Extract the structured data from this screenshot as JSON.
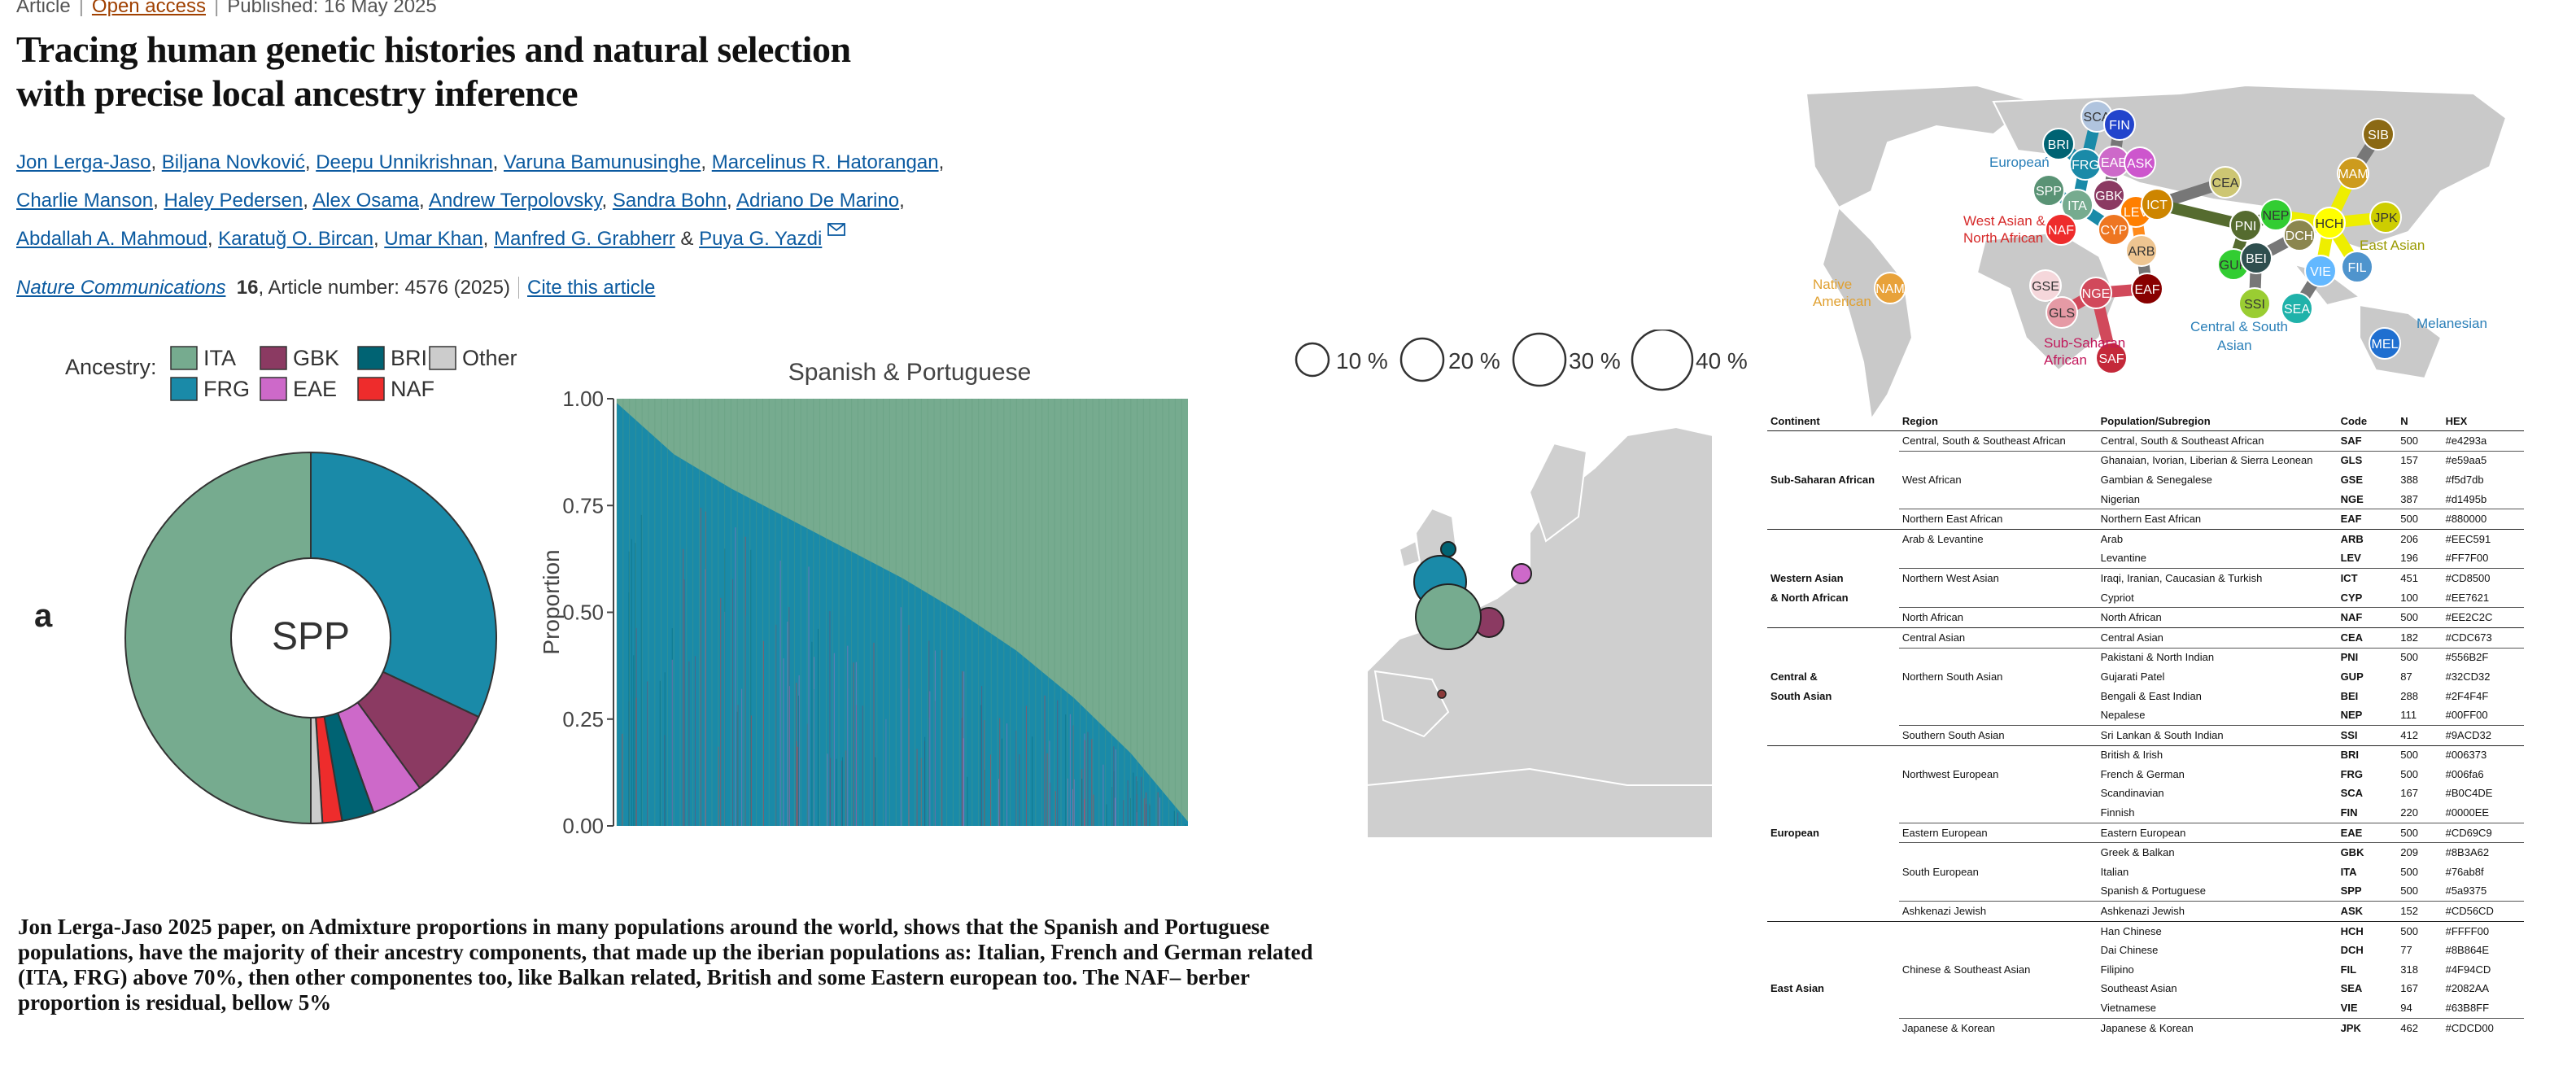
{
  "article": {
    "type": "Article",
    "access": "Open access",
    "published": "Published: 16 May 2025",
    "title_line1": "Tracing human genetic histories and natural selection",
    "title_line2": "with precise local ancestry inference",
    "authors": [
      "Jon Lerga-Jaso",
      "Biljana Novković",
      "Deepu Unnikrishnan",
      "Varuna Bamunusinghe",
      "Marcelinus R. Hatorangan",
      "Charlie Manson",
      "Haley Pedersen",
      "Alex Osama",
      "Andrew Terpolovsky",
      "Sandra Bohn",
      "Adriano De Marino",
      "Abdallah A. Mahmoud",
      "Karatuğ O. Bircan",
      "Umar Khan",
      "Manfred G. Grabherr",
      "Puya G. Yazdi"
    ],
    "journal": "Nature Communications",
    "volume": "16",
    "article_number": ", Article number: 4576 (2025)",
    "cite": "Cite this article"
  },
  "caption": "Jon Lerga-Jaso 2025 paper, on Admixture proportions in many populations around the world, shows that the Spanish and Portuguese populations, have the majority of their ancestry components, that made up the iberian populations as: Italian, French and German related (ITA, FRG) above 70%, then other componentes too, like Balkan related, British and some Eastern european too. The NAF– berber proportion is residual, bellow 5%",
  "legend": {
    "title": "Ancestry:",
    "items": [
      {
        "code": "ITA",
        "color": "#76ab8f"
      },
      {
        "code": "GBK",
        "color": "#8b3a62"
      },
      {
        "code": "BRI",
        "color": "#006373"
      },
      {
        "code": "Other",
        "color": "#cccccc"
      },
      {
        "code": "FRG",
        "color": "#1a8aa8"
      },
      {
        "code": "EAE",
        "color": "#cd69c9"
      },
      {
        "code": "NAF",
        "color": "#ee2c2c"
      }
    ]
  },
  "panel_label": "a",
  "donut_center": "SPP",
  "bar_title": "Spanish & Portuguese",
  "bubble_legend": [
    "10 %",
    "20 %",
    "30 %",
    "40 %"
  ],
  "chart_data": [
    {
      "type": "pie",
      "title": "",
      "center_label": "SPP",
      "slices": [
        {
          "label": "ITA",
          "value": 50.0,
          "color": "#76ab8f"
        },
        {
          "label": "FRG",
          "value": 32.0,
          "color": "#1a8aa8"
        },
        {
          "label": "GBK",
          "value": 8.0,
          "color": "#8b3a62"
        },
        {
          "label": "EAE",
          "value": 4.5,
          "color": "#cd69c9"
        },
        {
          "label": "BRI",
          "value": 2.8,
          "color": "#006373"
        },
        {
          "label": "NAF",
          "value": 1.7,
          "color": "#ee2c2c"
        },
        {
          "label": "Other",
          "value": 1.0,
          "color": "#cccccc"
        }
      ]
    },
    {
      "type": "area",
      "title": "Spanish & Portuguese",
      "xlabel": "",
      "ylabel": "Proportion",
      "ylim": [
        0,
        1
      ],
      "yticks": [
        "0.00",
        "0.25",
        "0.50",
        "0.75",
        "1.00"
      ],
      "series": [
        {
          "name": "ITA",
          "color": "#76ab8f"
        },
        {
          "name": "FRG",
          "color": "#1a8aa8"
        }
      ],
      "boundary_x": [
        0,
        0.1,
        0.2,
        0.3,
        0.4,
        0.5,
        0.6,
        0.7,
        0.8,
        0.9,
        1.0
      ],
      "boundary_y": [
        0.99,
        0.87,
        0.79,
        0.72,
        0.65,
        0.58,
        0.5,
        0.41,
        0.3,
        0.17,
        0.01
      ]
    }
  ],
  "map_labels": [
    {
      "text": "Europeań",
      "color": "#2a7fb8"
    },
    {
      "text": "West Asian &",
      "color": "#d62a2a"
    },
    {
      "text": "North African",
      "color": "#d62a2a"
    },
    {
      "text": "Native",
      "color": "#e0a030"
    },
    {
      "text": "American",
      "color": "#e0a030"
    },
    {
      "text": "Sub-Saharan",
      "color": "#c2185b"
    },
    {
      "text": "African",
      "color": "#c2185b"
    },
    {
      "text": "Central & South",
      "color": "#2a7fb8"
    },
    {
      "text": "Asian",
      "color": "#2a7fb8"
    },
    {
      "text": "East Asian",
      "color": "#9a9a00"
    },
    {
      "text": "Melanesian",
      "color": "#2a7fb8"
    }
  ],
  "map_nodes": [
    "SCA",
    "FIN",
    "BRI",
    "FRG",
    "EAE",
    "ASK",
    "SPP",
    "GBK",
    "ITA",
    "CEA",
    "LEV",
    "ICT",
    "NEP",
    "SIB",
    "MAM",
    "NAF",
    "CYP",
    "PNI",
    "HCH",
    "JPK",
    "DCH",
    "ARB",
    "GUP",
    "BEI",
    "VIE",
    "FIL",
    "EAF",
    "NGE",
    "SSI",
    "SEA",
    "GSE",
    "GLS",
    "SAF",
    "NAM",
    "MEL"
  ],
  "table": {
    "headers": [
      "Continent",
      "Region",
      "Population/Subregion",
      "Code",
      "N",
      "HEX"
    ],
    "rows": [
      {
        "continent": "",
        "region": "Central, South & Southeast African",
        "pop": "Central, South & Southeast African",
        "code": "SAF",
        "n": "500",
        "hex": "#e4293a"
      },
      {
        "continent": "",
        "region": "",
        "pop": "Ghanaian, Ivorian, Liberian & Sierra Leonean",
        "code": "GLS",
        "n": "157",
        "hex": "#e59aa5"
      },
      {
        "continent": "Sub-Saharan African",
        "region": "West African",
        "pop": "Gambian & Senegalese",
        "code": "GSE",
        "n": "388",
        "hex": "#f5d7db"
      },
      {
        "continent": "",
        "region": "",
        "pop": "Nigerian",
        "code": "NGE",
        "n": "387",
        "hex": "#d1495b"
      },
      {
        "continent": "",
        "region": "Northern East African",
        "pop": "Northern East African",
        "code": "EAF",
        "n": "500",
        "hex": "#880000"
      },
      {
        "continent": "",
        "region": "Arab & Levantine",
        "pop": "Arab",
        "code": "ARB",
        "n": "206",
        "hex": "#EEC591"
      },
      {
        "continent": "",
        "region": "",
        "pop": "Levantine",
        "code": "LEV",
        "n": "196",
        "hex": "#FF7F00"
      },
      {
        "continent": "Western Asian",
        "region": "Northern West Asian",
        "pop": "Iraqi, Iranian, Caucasian & Turkish",
        "code": "ICT",
        "n": "451",
        "hex": "#CD8500"
      },
      {
        "continent": "& North African",
        "region": "",
        "pop": "Cypriot",
        "code": "CYP",
        "n": "100",
        "hex": "#EE7621"
      },
      {
        "continent": "",
        "region": "North African",
        "pop": "North African",
        "code": "NAF",
        "n": "500",
        "hex": "#EE2C2C"
      },
      {
        "continent": "",
        "region": "Central Asian",
        "pop": "Central Asian",
        "code": "CEA",
        "n": "182",
        "hex": "#CDC673"
      },
      {
        "continent": "",
        "region": "",
        "pop": "Pakistani & North Indian",
        "code": "PNI",
        "n": "500",
        "hex": "#556B2F"
      },
      {
        "continent": "Central &",
        "region": "Northern South Asian",
        "pop": "Gujarati Patel",
        "code": "GUP",
        "n": "87",
        "hex": "#32CD32"
      },
      {
        "continent": "South Asian",
        "region": "",
        "pop": "Bengali & East Indian",
        "code": "BEI",
        "n": "288",
        "hex": "#2F4F4F"
      },
      {
        "continent": "",
        "region": "",
        "pop": "Nepalese",
        "code": "NEP",
        "n": "111",
        "hex": "#00FF00"
      },
      {
        "continent": "",
        "region": "Southern South Asian",
        "pop": "Sri Lankan & South Indian",
        "code": "SSI",
        "n": "412",
        "hex": "#9ACD32"
      },
      {
        "continent": "",
        "region": "",
        "pop": "British & Irish",
        "code": "BRI",
        "n": "500",
        "hex": "#006373"
      },
      {
        "continent": "",
        "region": "Northwest European",
        "pop": "French & German",
        "code": "FRG",
        "n": "500",
        "hex": "#006fa6"
      },
      {
        "continent": "",
        "region": "",
        "pop": "Scandinavian",
        "code": "SCA",
        "n": "167",
        "hex": "#B0C4DE"
      },
      {
        "continent": "",
        "region": "",
        "pop": "Finnish",
        "code": "FIN",
        "n": "220",
        "hex": "#0000EE"
      },
      {
        "continent": "European",
        "region": "Eastern European",
        "pop": "Eastern European",
        "code": "EAE",
        "n": "500",
        "hex": "#CD69C9"
      },
      {
        "continent": "",
        "region": "",
        "pop": "Greek & Balkan",
        "code": "GBK",
        "n": "209",
        "hex": "#8B3A62"
      },
      {
        "continent": "",
        "region": "South European",
        "pop": "Italian",
        "code": "ITA",
        "n": "500",
        "hex": "#76ab8f"
      },
      {
        "continent": "",
        "region": "",
        "pop": "Spanish & Portuguese",
        "code": "SPP",
        "n": "500",
        "hex": "#5a9375"
      },
      {
        "continent": "",
        "region": "Ashkenazi Jewish",
        "pop": "Ashkenazi Jewish",
        "code": "ASK",
        "n": "152",
        "hex": "#CD56CD"
      },
      {
        "continent": "",
        "region": "",
        "pop": "Han Chinese",
        "code": "HCH",
        "n": "500",
        "hex": "#FFFF00"
      },
      {
        "continent": "",
        "region": "",
        "pop": "Dai Chinese",
        "code": "DCH",
        "n": "77",
        "hex": "#8B864E"
      },
      {
        "continent": "",
        "region": "Chinese & Southeast Asian",
        "pop": "Filipino",
        "code": "FIL",
        "n": "318",
        "hex": "#4F94CD"
      },
      {
        "continent": "East Asian",
        "region": "",
        "pop": "Southeast Asian",
        "code": "SEA",
        "n": "167",
        "hex": "#2082AA"
      },
      {
        "continent": "",
        "region": "",
        "pop": "Vietnamese",
        "code": "VIE",
        "n": "94",
        "hex": "#63B8FF"
      },
      {
        "continent": "",
        "region": "Japanese & Korean",
        "pop": "Japanese & Korean",
        "code": "JPK",
        "n": "462",
        "hex": "#CDCD00"
      }
    ]
  }
}
